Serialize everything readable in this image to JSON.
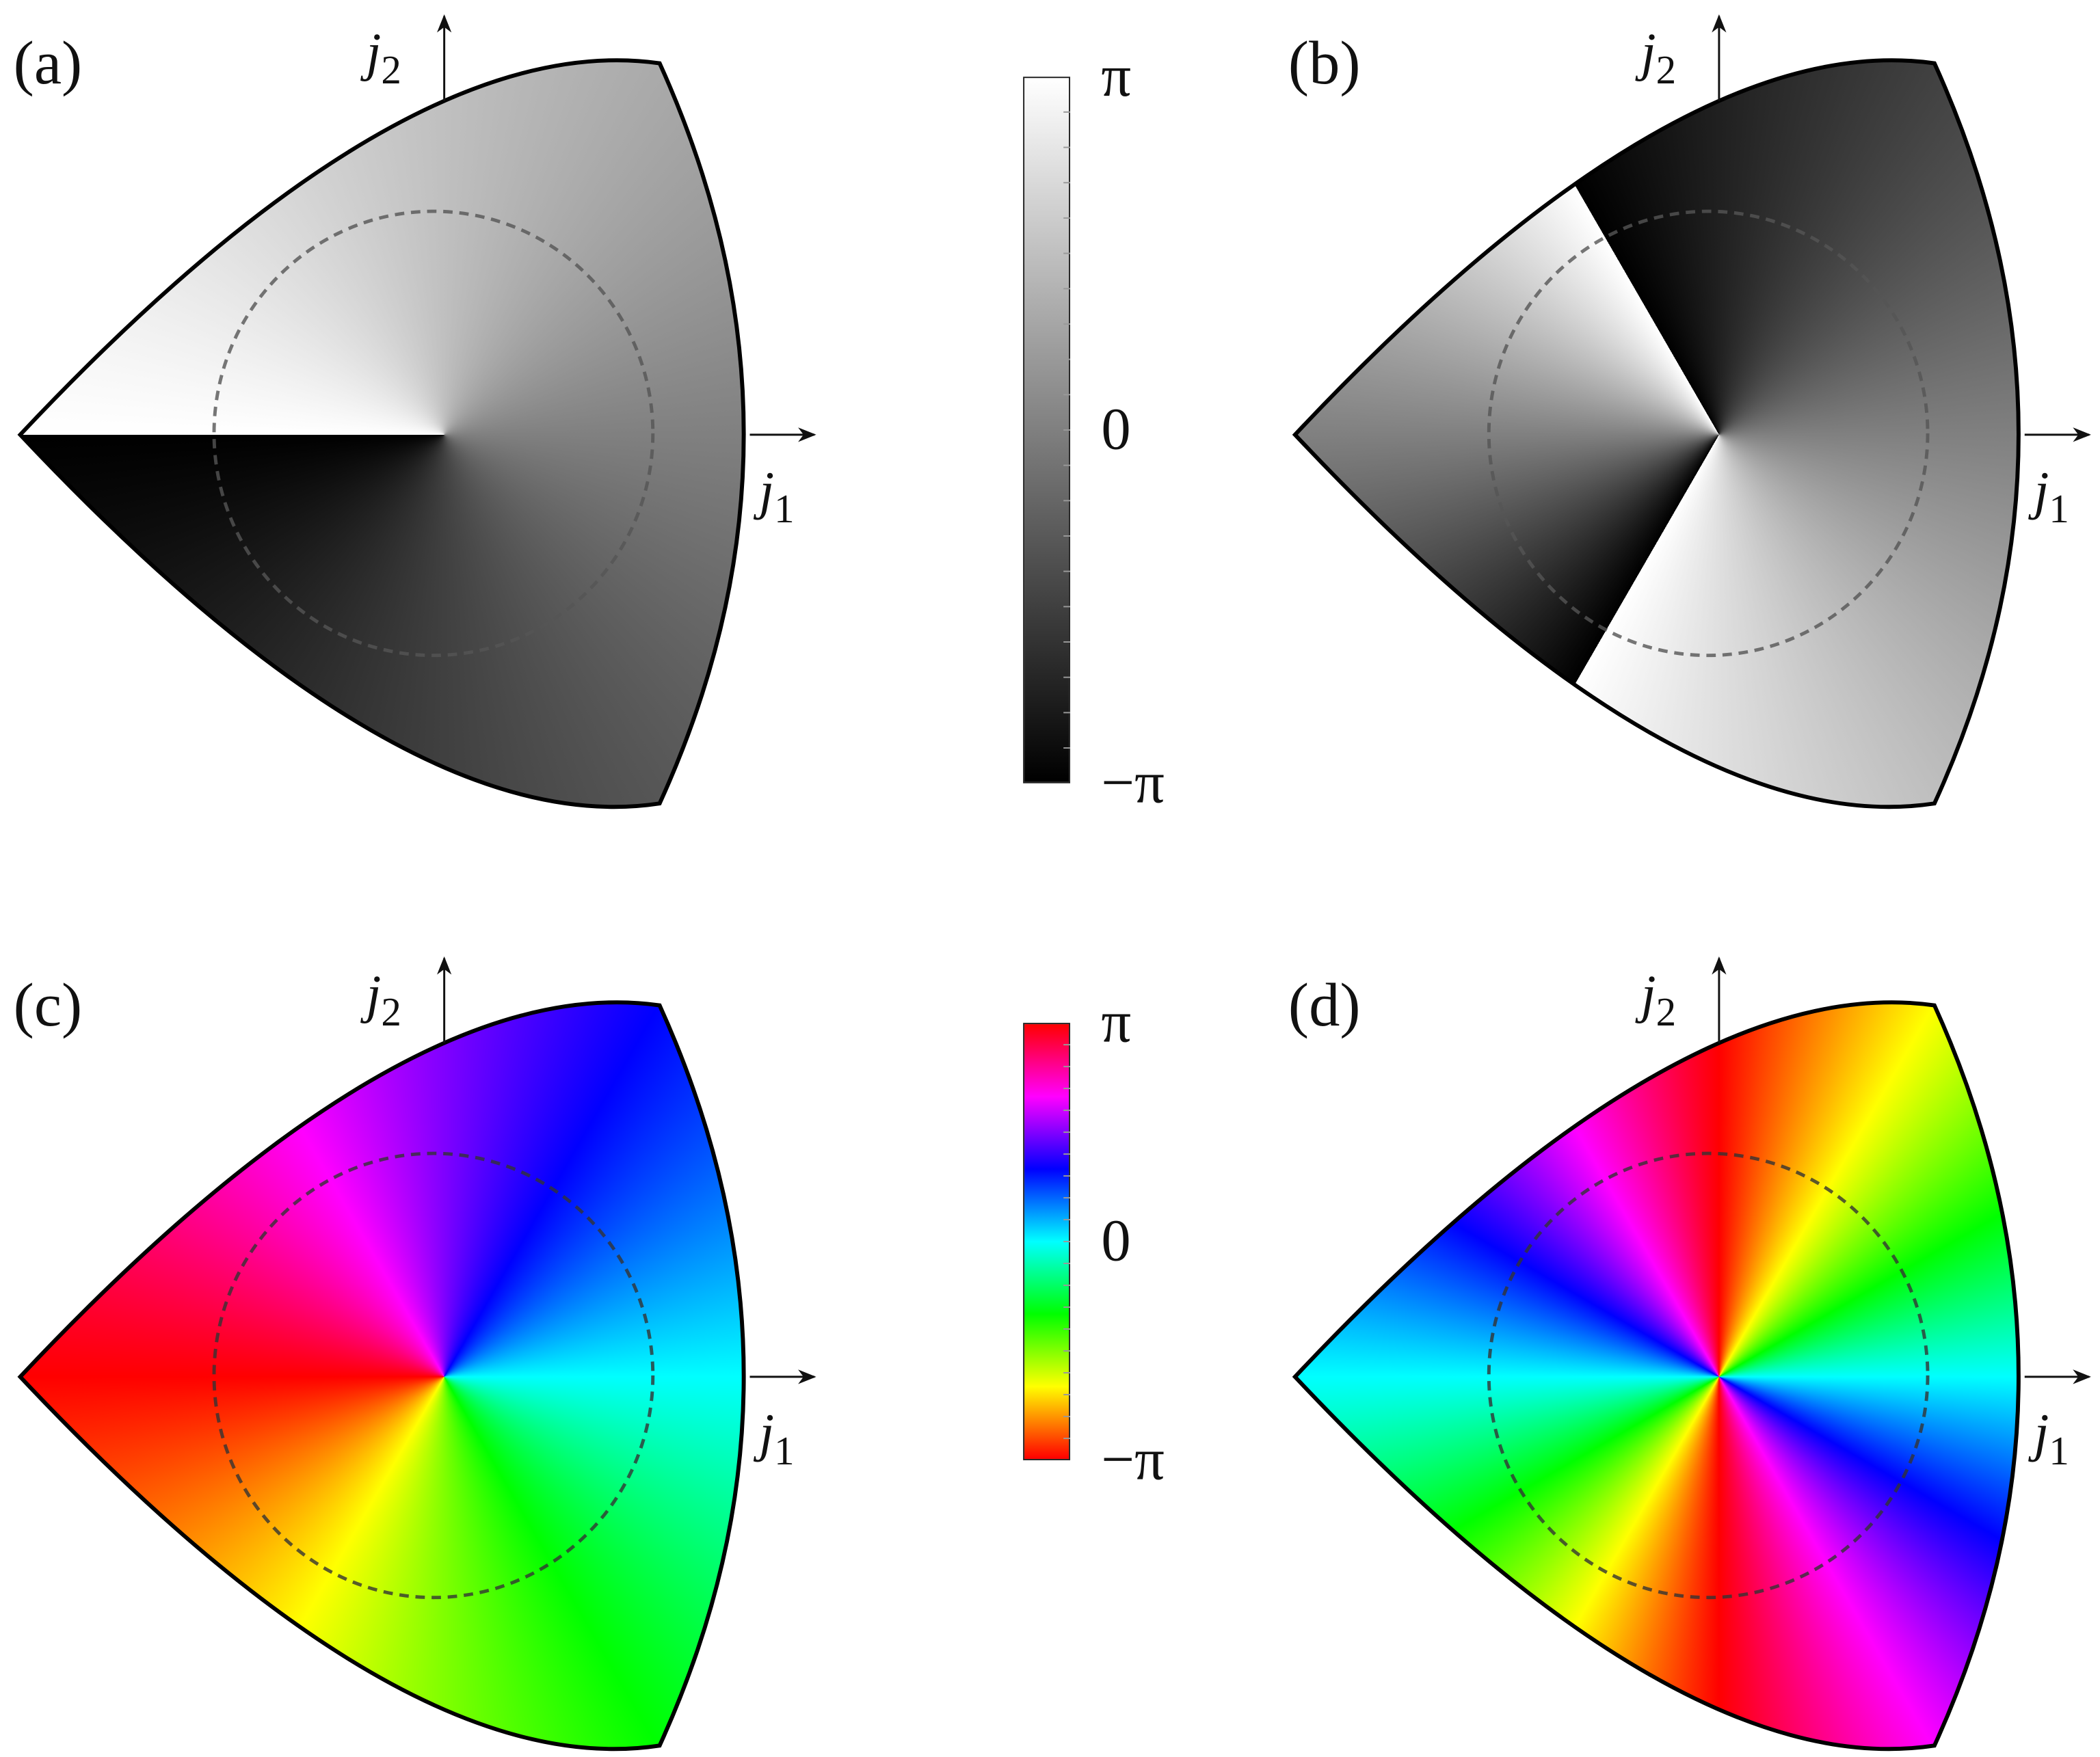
{
  "panels": [
    {
      "label": "(a)",
      "x_axis": {
        "symbol": "j",
        "subscript": "1"
      },
      "y_axis": {
        "symbol": "j",
        "subscript": "2"
      }
    },
    {
      "label": "(b)",
      "x_axis": {
        "symbol": "j",
        "subscript": "1"
      },
      "y_axis": {
        "symbol": "j",
        "subscript": "2"
      }
    },
    {
      "label": "(c)",
      "x_axis": {
        "symbol": "j",
        "subscript": "1"
      },
      "y_axis": {
        "symbol": "j",
        "subscript": "2"
      }
    },
    {
      "label": "(d)",
      "x_axis": {
        "symbol": "j",
        "subscript": "1"
      },
      "y_axis": {
        "symbol": "j",
        "subscript": "2"
      }
    }
  ],
  "colorbars": [
    {
      "ticks": [
        "π",
        "0",
        "−π"
      ]
    },
    {
      "ticks": [
        "π",
        "0",
        "−π"
      ]
    }
  ]
}
